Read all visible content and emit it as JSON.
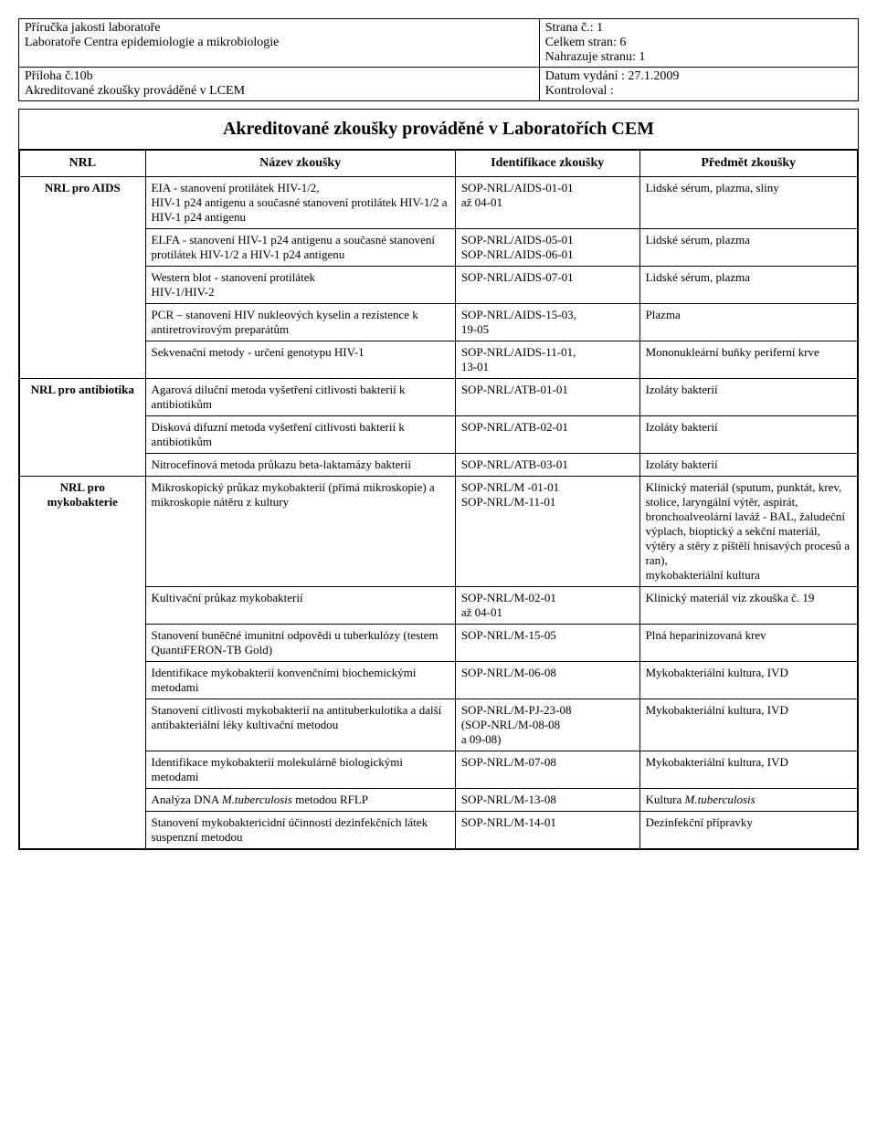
{
  "meta": {
    "top_left": "Příručka jakosti laboratoře\nLaboratoře Centra epidemiologie a mikrobiologie",
    "top_right_lines": [
      "Strana č.:  1",
      "Celkem stran: 6",
      "Nahrazuje stranu: 1"
    ],
    "bottom_left": "Příloha č.10b\nAkreditované zkoušky prováděné v LCEM",
    "bottom_right_lines": [
      "Datum vydání :  27.1.2009",
      "Kontroloval :"
    ]
  },
  "title": "Akreditované zkoušky prováděné v Laboratořích CEM",
  "headers": {
    "col1": "NRL",
    "col2": "Název zkoušky",
    "col3": "Identifikace zkoušky",
    "col4": "Předmět zkoušky"
  },
  "rows": [
    {
      "group": "NRL pro AIDS",
      "group_rowspan": 5,
      "nazev": "EIA - stanovení protilátek HIV-1/2,\nHIV-1 p24 antigenu a současné stanovení protilátek HIV-1/2 a HIV-1 p24 antigenu",
      "ident": "SOP-NRL/AIDS-01-01\naž 04-01",
      "predmet": "Lidské sérum, plazma, sliny"
    },
    {
      "nazev": "ELFA - stanovení HIV-1 p24 antigenu a současné stanovení protilátek HIV-1/2 a HIV-1 p24 antigenu",
      "ident": "SOP-NRL/AIDS-05-01\nSOP-NRL/AIDS-06-01",
      "predmet": "Lidské sérum, plazma"
    },
    {
      "nazev": "Western blot - stanovení protilátek\nHIV-1/HIV-2",
      "ident": "SOP-NRL/AIDS-07-01",
      "predmet": "Lidské sérum, plazma"
    },
    {
      "nazev": "PCR – stanovení HIV nukleových kyselin a rezistence k antiretrovirovým preparátům",
      "ident": "SOP-NRL/AIDS-15-03,\n19-05",
      "predmet": "Plazma"
    },
    {
      "nazev": "Sekvenační metody - určení genotypu HIV-1",
      "ident": "SOP-NRL/AIDS-11-01,\n13-01",
      "predmet": "Mononukleární buňky periferní krve"
    },
    {
      "group": "NRL pro antibiotika",
      "group_rowspan": 3,
      "nazev": "Agarová diluční metoda vyšetření citlivosti bakterií k antibiotikům",
      "ident": "SOP-NRL/ATB-01-01",
      "predmet": "Izoláty bakterií"
    },
    {
      "nazev": "Disková difuzní metoda vyšetření citlivosti bakterií k antibiotikům",
      "ident": "SOP-NRL/ATB-02-01",
      "predmet": "Izoláty bakterií"
    },
    {
      "nazev": "Nitrocefínová metoda průkazu beta-laktamázy bakterií",
      "ident": "SOP-NRL/ATB-03-01",
      "predmet": "Izoláty bakterií"
    },
    {
      "group": "NRL pro mykobakterie",
      "group_rowspan": 8,
      "nazev": "Mikroskopický průkaz mykobakterií  (přímá mikroskopie) a mikroskopie nátěru z kultury",
      "ident": "SOP-NRL/M -01-01\nSOP-NRL/M-11-01",
      "predmet": "Klinický materiál (sputum, punktát, krev, stolice, laryngální výtěr, aspirát, bronchoalveolární laváž - BAL,  žaludeční výplach, bioptický a sekční materiál, výtěry a stěry z píštělí hnisavých procesů a ran),\nmykobakteriální kultura"
    },
    {
      "nazev": "Kultivační průkaz mykobakterií",
      "ident": "SOP-NRL/M-02-01\naž 04-01",
      "predmet": "Klinický materiál viz zkouška č. 19"
    },
    {
      "nazev": "Stanovení buněčné imunitní odpovědi u tuberkulózy (testem QuantiFERON-TB Gold)",
      "ident": "SOP-NRL/M-15-05",
      "predmet": "Plná heparinizovaná krev"
    },
    {
      "nazev": "Identifikace mykobakterií konvenčními biochemickými metodami",
      "ident": "SOP-NRL/M-06-08",
      "predmet": "Mykobakteriální kultura, IVD"
    },
    {
      "nazev": "Stanovení citlivosti mykobakterií na antituberkulotika a další antibakteriální léky kultivační metodou",
      "ident": "SOP-NRL/M-PJ-23-08\n(SOP-NRL/M-08-08\na 09-08)",
      "predmet": "Mykobakteriální kultura, IVD"
    },
    {
      "nazev": "Identifikace mykobakterií molekulárně biologickými metodami",
      "ident": "SOP-NRL/M-07-08",
      "predmet": "Mykobakteriální kultura, IVD"
    },
    {
      "nazev": "Analýza  DNA M.tuberculosis metodou RFLP",
      "nazev_html": "Analýza  DNA <i>M.tuberculosis</i> metodou RFLP",
      "ident": "SOP-NRL/M-13-08",
      "predmet": "Kultura M.tuberculosis",
      "predmet_html": "Kultura <i>M.tuberculosis</i>"
    },
    {
      "nazev": "Stanovení mykobaktericidní účinnosti dezinfekčních látek suspenzní metodou",
      "ident": "SOP-NRL/M-14-01",
      "predmet": "Dezinfekční přípravky"
    }
  ],
  "layout": {
    "col_widths": [
      "15%",
      "37%",
      "22%",
      "26%"
    ]
  }
}
